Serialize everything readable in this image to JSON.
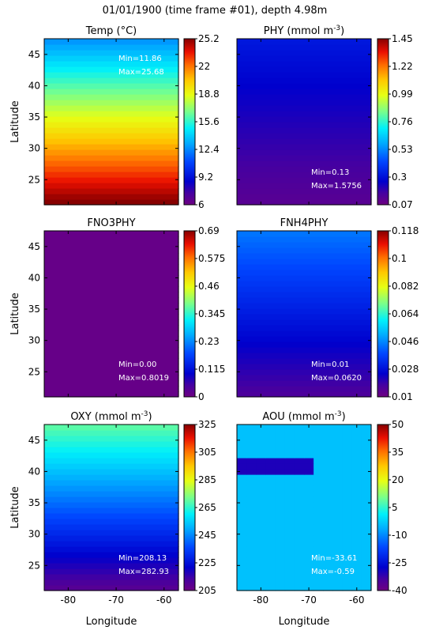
{
  "figure": {
    "title": "01/01/1900 (time frame #01), depth 4.98m",
    "xlabel": "Longitude",
    "ylabel": "Latitude"
  },
  "chart_data": [
    {
      "type": "heatmap",
      "title": "Temp (°C)",
      "title_parts": [
        "Temp (°C)"
      ],
      "xlim": [
        -85,
        -57
      ],
      "ylim": [
        21,
        47.5
      ],
      "xticks": [
        "-80",
        "-70",
        "-60"
      ],
      "yticks": [
        "25",
        "30",
        "35",
        "40",
        "45"
      ],
      "colorbar": {
        "min": 6,
        "max": 25.2,
        "ticks": [
          "25.2",
          "22",
          "18.8",
          "15.6",
          "12.4",
          "9.2",
          "6"
        ]
      },
      "stats": {
        "min_label": "Min=11.86",
        "max_label": "Max=25.68",
        "position": "top-right"
      },
      "field": {
        "kind": "lat_gradient",
        "lat_low": 21,
        "val_low": 25.5,
        "lat_high": 47.5,
        "val_high": 12.5
      }
    },
    {
      "type": "heatmap",
      "title": "PHY (mmol m-3)",
      "title_parts": [
        "PHY (mmol m",
        "-3",
        ")"
      ],
      "xlim": [
        -85,
        -57
      ],
      "ylim": [
        21,
        47.5
      ],
      "xticks": [
        "-80",
        "-70",
        "-60"
      ],
      "yticks": [
        "25",
        "30",
        "35",
        "40",
        "45"
      ],
      "colorbar": {
        "min": 0.07,
        "max": 1.45,
        "ticks": [
          "1.45",
          "1.22",
          "0.99",
          "0.76",
          "0.53",
          "0.3",
          "0.07"
        ]
      },
      "stats": {
        "min_label": "Min=0.13",
        "max_label": "Max=1.5756",
        "position": "bottom-right"
      },
      "field": {
        "kind": "lat_gradient",
        "lat_low": 21,
        "val_low": 0.12,
        "lat_high": 47.5,
        "val_high": 0.32
      }
    },
    {
      "type": "heatmap",
      "title": "FNO3PHY",
      "title_parts": [
        "FNO3PHY"
      ],
      "xlim": [
        -85,
        -57
      ],
      "ylim": [
        21,
        47.5
      ],
      "xticks": [
        "-80",
        "-70",
        "-60"
      ],
      "yticks": [
        "25",
        "30",
        "35",
        "40",
        "45"
      ],
      "colorbar": {
        "min": 0,
        "max": 0.69,
        "ticks": [
          "0.69",
          "0.575",
          "0.46",
          "0.345",
          "0.23",
          "0.115",
          "0"
        ]
      },
      "stats": {
        "min_label": "Min=0.00",
        "max_label": "Max=0.8019",
        "position": "bottom-right"
      },
      "field": {
        "kind": "uniform",
        "value": 0.01
      }
    },
    {
      "type": "heatmap",
      "title": "FNH4PHY",
      "title_parts": [
        "FNH4PHY"
      ],
      "xlim": [
        -85,
        -57
      ],
      "ylim": [
        21,
        47.5
      ],
      "xticks": [
        "-80",
        "-70",
        "-60"
      ],
      "yticks": [
        "25",
        "30",
        "35",
        "40",
        "45"
      ],
      "colorbar": {
        "min": 0.01,
        "max": 0.118,
        "ticks": [
          "0.118",
          "0.1",
          "0.082",
          "0.064",
          "0.046",
          "0.028",
          "0.01"
        ]
      },
      "stats": {
        "min_label": "Min=0.01",
        "max_label": "Max=0.0620",
        "position": "bottom-right"
      },
      "field": {
        "kind": "lat_gradient",
        "lat_low": 21,
        "val_low": 0.016,
        "lat_high": 47.5,
        "val_high": 0.044
      }
    },
    {
      "type": "heatmap",
      "title": "OXY (mmol m-3)",
      "title_parts": [
        "OXY (mmol m",
        "-3",
        ")"
      ],
      "xlim": [
        -85,
        -57
      ],
      "ylim": [
        21,
        47.5
      ],
      "xticks": [
        "-80",
        "-70",
        "-60"
      ],
      "yticks": [
        "25",
        "30",
        "35",
        "40",
        "45"
      ],
      "colorbar": {
        "min": 205,
        "max": 325,
        "ticks": [
          "325",
          "305",
          "285",
          "265",
          "245",
          "225",
          "205"
        ]
      },
      "stats": {
        "min_label": "Min=208.13",
        "max_label": "Max=282.93",
        "position": "bottom-right"
      },
      "field": {
        "kind": "lat_gradient",
        "lat_low": 21,
        "val_low": 209,
        "lat_high": 47.5,
        "val_high": 270
      }
    },
    {
      "type": "heatmap",
      "title": "AOU (mmol m-3)",
      "title_parts": [
        "AOU (mmol m",
        "-3",
        ")"
      ],
      "xlim": [
        -85,
        -57
      ],
      "ylim": [
        21,
        47.5
      ],
      "xticks": [
        "-80",
        "-70",
        "-60"
      ],
      "yticks": [
        "25",
        "30",
        "35",
        "40",
        "45"
      ],
      "colorbar": {
        "min": -40,
        "max": 50,
        "ticks": [
          "50",
          "35",
          "20",
          "5",
          "-10",
          "-25",
          "-40"
        ]
      },
      "stats": {
        "min_label": "Min=-33.61",
        "max_label": "Max=-0.59",
        "position": "bottom-right"
      },
      "field": {
        "kind": "band",
        "value": -4,
        "band_lat": 41,
        "band_value": -30,
        "band_lon_max": -68
      }
    }
  ]
}
